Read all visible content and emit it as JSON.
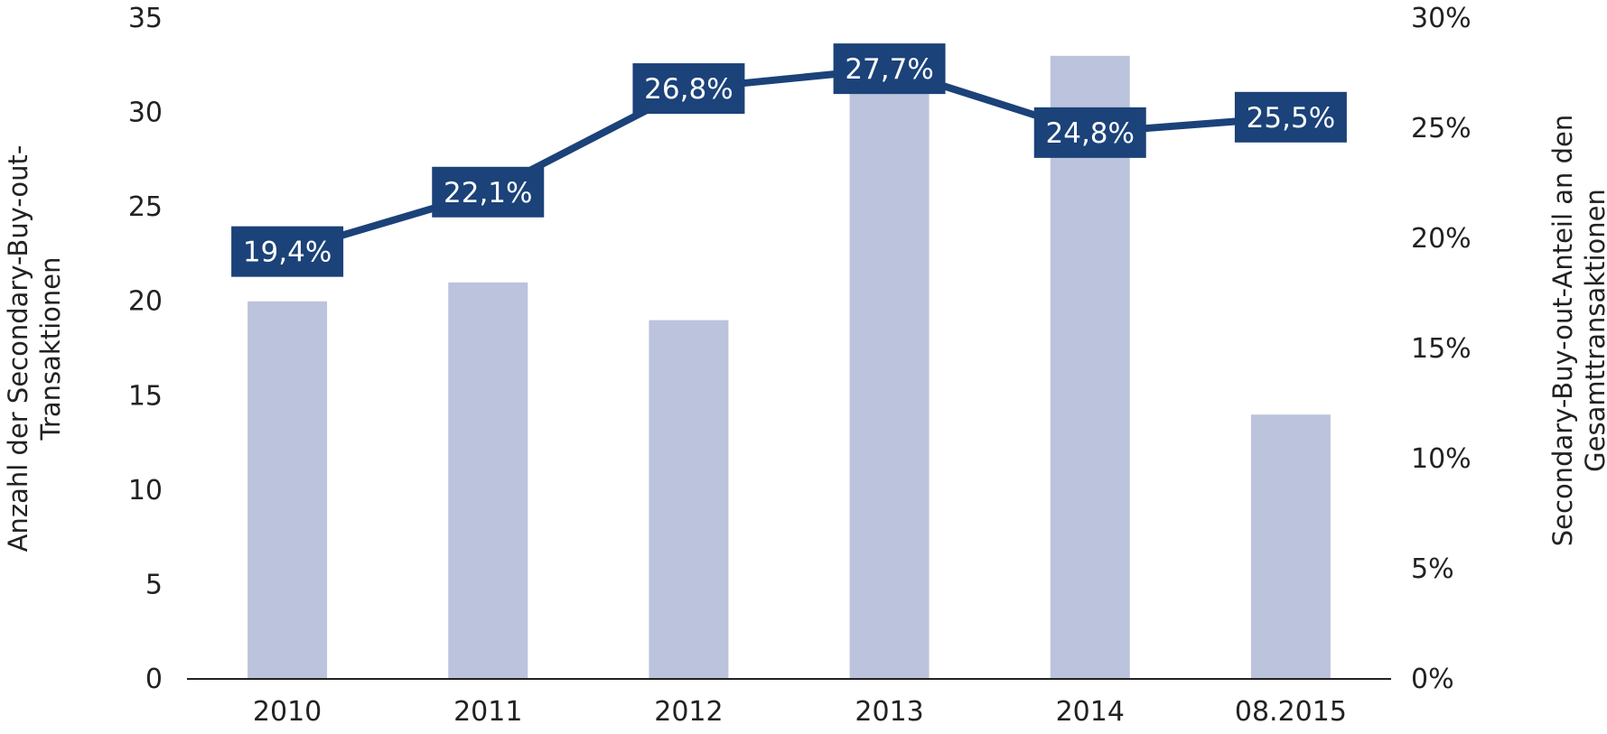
{
  "chart_data": {
    "type": "bar",
    "categories": [
      "2010",
      "2011",
      "2012",
      "2013",
      "2014",
      "08.2015"
    ],
    "series": [
      {
        "values": [
          20,
          21,
          19,
          31,
          33,
          14
        ],
        "axis": "left",
        "type": "bar",
        "color": "#bcc3dc"
      },
      {
        "values": [
          19.4,
          22.1,
          26.8,
          27.7,
          24.8,
          25.5
        ],
        "labels": [
          "19,4%",
          "22,1%",
          "26,8%",
          "27,7%",
          "24,8%",
          "25,5%"
        ],
        "axis": "right",
        "type": "line",
        "color": "#1b4279"
      }
    ],
    "ylabel_left": [
      "Anzahl der Secondary-Buy-out-",
      "Transaktionen"
    ],
    "ylabel_right": [
      "Secondary-Buy-out-Anteil an den",
      "Gesamttransaktionen"
    ],
    "ylim_left": [
      0,
      35
    ],
    "ylim_right": [
      0,
      30
    ],
    "yticks_left": [
      "0",
      "5",
      "10",
      "15",
      "20",
      "25",
      "30",
      "35"
    ],
    "yticks_right": [
      "0%",
      "5%",
      "10%",
      "15%",
      "20%",
      "25%",
      "30%"
    ],
    "grid": false,
    "legend": "none"
  }
}
